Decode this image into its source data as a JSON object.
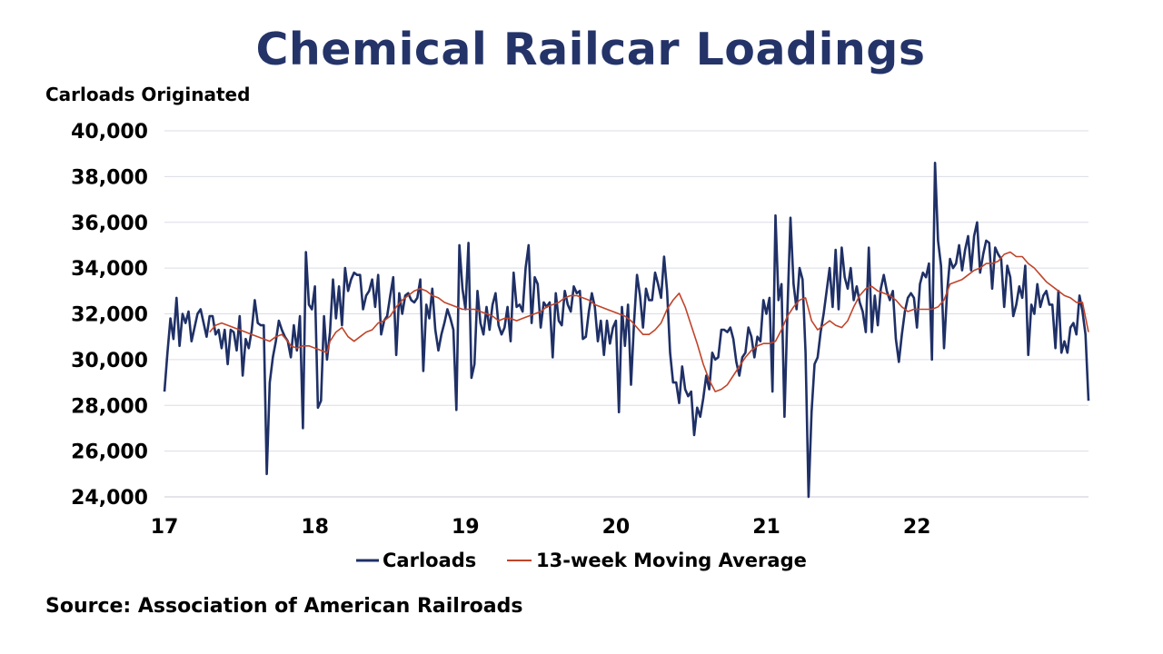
{
  "title": "Chemical Railcar Loadings",
  "source": "Source: Association of American Railroads",
  "colors": {
    "title": "#243469",
    "carloads": "#1f3066",
    "moving_average": "#c0442a",
    "grid": "#d9d9e3"
  },
  "chart_data": {
    "type": "line",
    "ylabel": "Carloads Originated",
    "xlabel": "",
    "ylim": [
      24000,
      40000
    ],
    "xlim": [
      17,
      23.0
    ],
    "y_ticks": [
      24000,
      26000,
      28000,
      30000,
      32000,
      34000,
      36000,
      38000,
      40000
    ],
    "y_tick_labels": [
      "24,000",
      "26,000",
      "28,000",
      "30,000",
      "32,000",
      "34,000",
      "36,000",
      "38,000",
      "40,000"
    ],
    "x_ticks": [
      17,
      18,
      19,
      20,
      21,
      22
    ],
    "x_tick_labels": [
      "17",
      "18",
      "19",
      "20",
      "21",
      "22"
    ],
    "grid": "horizontal",
    "legend_position": "bottom-center",
    "series": [
      {
        "name": "Carloads",
        "points": [
          [
            17.0,
            28600
          ],
          [
            17.06,
            31800
          ],
          [
            17.1,
            32700
          ],
          [
            17.13,
            30600
          ],
          [
            17.16,
            32000
          ],
          [
            17.2,
            31600
          ],
          [
            17.23,
            30800
          ],
          [
            17.27,
            31900
          ],
          [
            17.3,
            32200
          ],
          [
            17.34,
            31100
          ],
          [
            17.38,
            31900
          ],
          [
            17.42,
            31000
          ],
          [
            17.46,
            30400
          ],
          [
            17.5,
            29800
          ],
          [
            17.54,
            31200
          ],
          [
            17.58,
            30500
          ],
          [
            17.62,
            31900
          ],
          [
            17.66,
            29300
          ],
          [
            17.7,
            30800
          ],
          [
            17.75,
            32600
          ],
          [
            17.8,
            31600
          ],
          [
            17.85,
            31500
          ],
          [
            17.9,
            25000
          ],
          [
            17.93,
            29000
          ],
          [
            17.97,
            30800
          ],
          [
            18.0,
            31700
          ],
          [
            18.05,
            31200
          ],
          [
            18.1,
            30800
          ],
          [
            18.13,
            30100
          ],
          [
            18.17,
            31500
          ],
          [
            18.2,
            30400
          ],
          [
            18.23,
            32000
          ],
          [
            18.27,
            27000
          ],
          [
            18.3,
            34700
          ],
          [
            18.33,
            32300
          ],
          [
            18.36,
            32200
          ],
          [
            18.39,
            33200
          ],
          [
            18.42,
            27900
          ],
          [
            18.45,
            28200
          ],
          [
            18.5,
            31900
          ],
          [
            18.53,
            30000
          ],
          [
            18.58,
            33500
          ],
          [
            18.61,
            31800
          ],
          [
            18.64,
            33200
          ],
          [
            18.67,
            32000
          ],
          [
            18.7,
            34000
          ],
          [
            18.73,
            33000
          ],
          [
            18.78,
            33800
          ],
          [
            18.82,
            33700
          ],
          [
            18.86,
            32200
          ],
          [
            18.9,
            33500
          ],
          [
            18.94,
            32700
          ],
          [
            18.98,
            33800
          ],
          [
            18.1,
            31000
          ]
        ]
      }
    ]
  }
}
